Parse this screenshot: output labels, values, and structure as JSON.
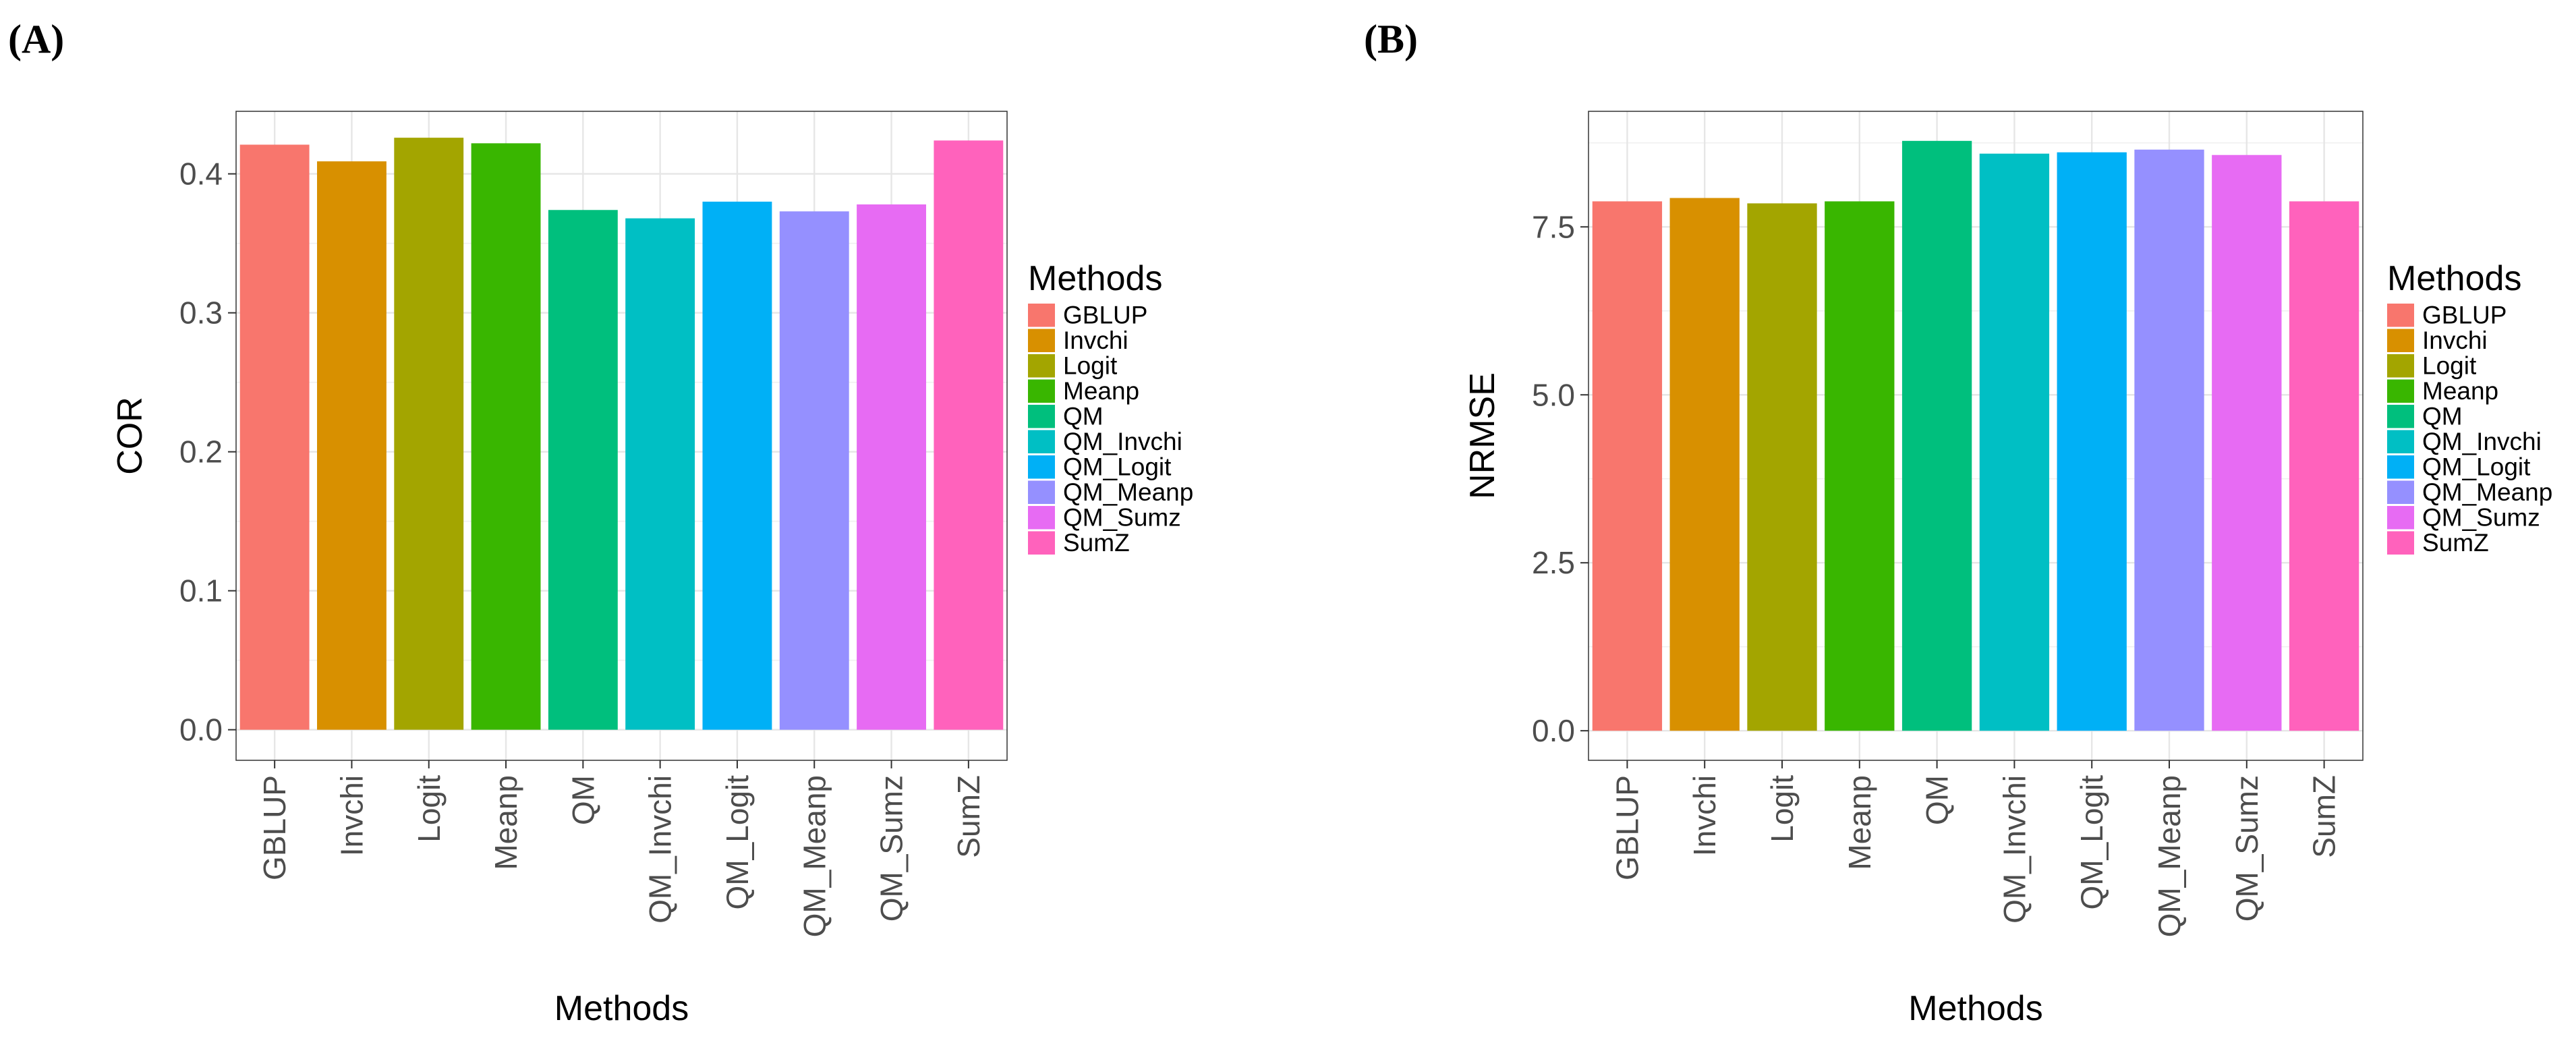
{
  "legend_colors": [
    "#F8766D",
    "#D89000",
    "#A3A500",
    "#39B600",
    "#00BF7D",
    "#00BFC4",
    "#00B0F6",
    "#9590FF",
    "#E76BF3",
    "#FF62BC"
  ],
  "chart_data": [
    {
      "panel_label": "(A)",
      "type": "bar",
      "categories": [
        "GBLUP",
        "Invchi",
        "Logit",
        "Meanp",
        "QM",
        "QM_Invchi",
        "QM_Logit",
        "QM_Meanp",
        "QM_Sumz",
        "SumZ"
      ],
      "values": [
        0.421,
        0.409,
        0.426,
        0.422,
        0.374,
        0.368,
        0.38,
        0.373,
        0.378,
        0.424
      ],
      "title": "",
      "xlabel": "Methods",
      "ylabel": "COR",
      "ylim": [
        -0.022,
        0.445
      ],
      "yticks": [
        0.0,
        0.1,
        0.2,
        0.3,
        0.4
      ],
      "ytick_labels": [
        "0.0",
        "0.1",
        "0.2",
        "0.3",
        "0.4"
      ],
      "grid": true,
      "legend_title": "Methods",
      "legend_entries": [
        "GBLUP",
        "Invchi",
        "Logit",
        "Meanp",
        "QM",
        "QM_Invchi",
        "QM_Logit",
        "QM_Meanp",
        "QM_Sumz",
        "SumZ"
      ],
      "legend_position": "right"
    },
    {
      "panel_label": "(B)",
      "type": "bar",
      "categories": [
        "GBLUP",
        "Invchi",
        "Logit",
        "Meanp",
        "QM",
        "QM_Invchi",
        "QM_Logit",
        "QM_Meanp",
        "QM_Sumz",
        "SumZ"
      ],
      "values": [
        7.88,
        7.93,
        7.85,
        7.88,
        8.78,
        8.59,
        8.61,
        8.65,
        8.57,
        7.88
      ],
      "title": "",
      "xlabel": "Methods",
      "ylabel": "NRMSE",
      "ylim": [
        -0.44,
        9.22
      ],
      "yticks": [
        0.0,
        2.5,
        5.0,
        7.5
      ],
      "ytick_labels": [
        "0.0",
        "2.5",
        "5.0",
        "7.5"
      ],
      "grid": true,
      "legend_title": "Methods",
      "legend_entries": [
        "GBLUP",
        "Invchi",
        "Logit",
        "Meanp",
        "QM",
        "QM_Invchi",
        "QM_Logit",
        "QM_Meanp",
        "QM_Sumz",
        "SumZ"
      ],
      "legend_position": "right"
    }
  ]
}
